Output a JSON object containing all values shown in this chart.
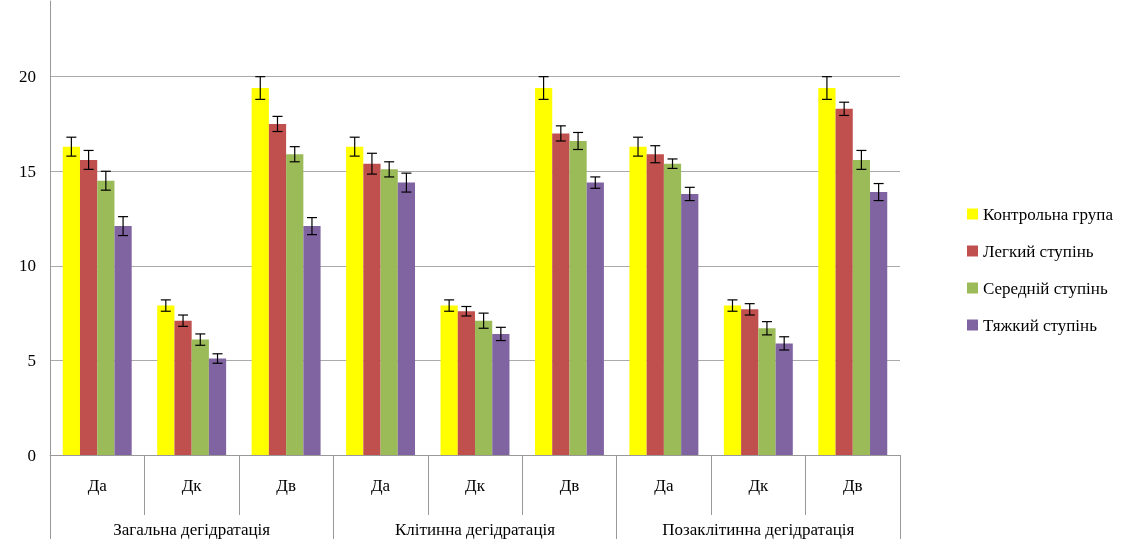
{
  "chart_data": {
    "type": "bar",
    "categories": [
      "Да",
      "Дк",
      "Дв",
      "Да",
      "Дк",
      "Дв",
      "Да",
      "Дк",
      "Дв"
    ],
    "annotations": [
      "Загальна дегідратація",
      "Клітинна дегідратація",
      "Позаклітинна дегідратація"
    ],
    "series": [
      {
        "name": "Контрольна група",
        "color": "#ffff00",
        "values": [
          16.3,
          7.9,
          19.4,
          16.3,
          7.9,
          19.4,
          16.3,
          7.9,
          19.4
        ],
        "errors": [
          0.5,
          0.3,
          0.6,
          0.5,
          0.3,
          0.6,
          0.5,
          0.3,
          0.6
        ]
      },
      {
        "name": "Легкий ступінь",
        "color": "#c0504d",
        "values": [
          15.6,
          7.1,
          17.5,
          15.4,
          7.6,
          17.0,
          15.9,
          7.7,
          18.3
        ],
        "errors": [
          0.5,
          0.3,
          0.4,
          0.55,
          0.25,
          0.4,
          0.45,
          0.3,
          0.35
        ]
      },
      {
        "name": "Середній ступінь",
        "color": "#9bbb59",
        "values": [
          14.5,
          6.1,
          15.9,
          15.1,
          7.1,
          16.6,
          15.4,
          6.7,
          15.6
        ],
        "errors": [
          0.5,
          0.3,
          0.4,
          0.4,
          0.4,
          0.45,
          0.25,
          0.35,
          0.5
        ]
      },
      {
        "name": "Тяжкий ступінь",
        "color": "#8064a2",
        "values": [
          12.1,
          5.1,
          12.1,
          14.4,
          6.4,
          14.4,
          13.8,
          5.9,
          13.9
        ],
        "errors": [
          0.5,
          0.25,
          0.45,
          0.5,
          0.35,
          0.3,
          0.35,
          0.35,
          0.45
        ]
      }
    ],
    "ylim": [
      0,
      24
    ],
    "yticks": [
      0,
      5,
      10,
      15,
      20
    ],
    "grid": "y",
    "legend": "right"
  }
}
